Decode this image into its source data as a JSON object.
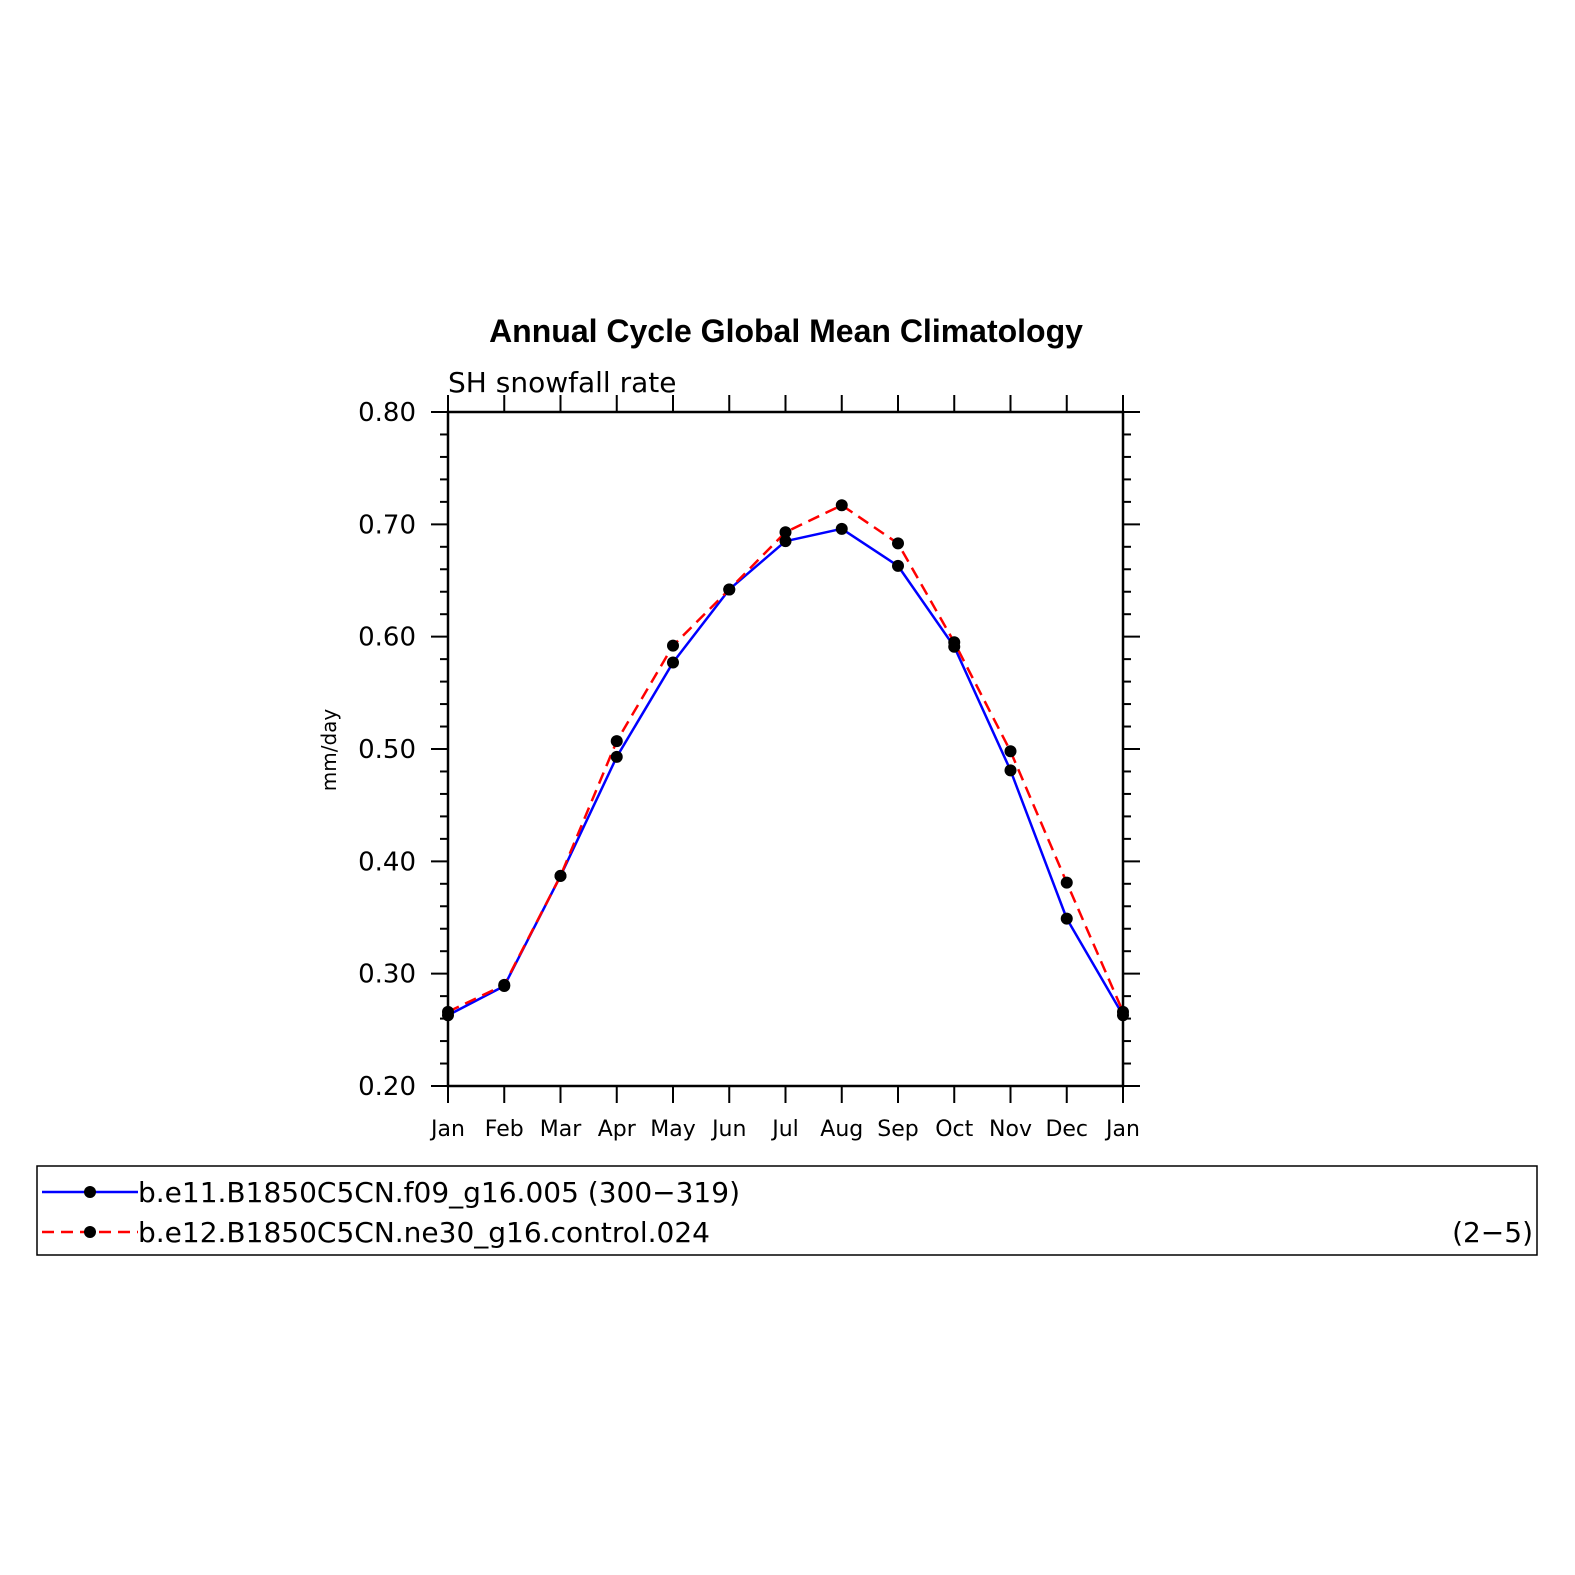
{
  "chart_data": {
    "type": "line",
    "title": "Annual Cycle Global Mean Climatology",
    "subtitle": "SH snowfall rate",
    "ylabel": "mm/day",
    "xlabel": "",
    "categories": [
      "Jan",
      "Feb",
      "Mar",
      "Apr",
      "May",
      "Jun",
      "Jul",
      "Aug",
      "Sep",
      "Oct",
      "Nov",
      "Dec",
      "Jan"
    ],
    "ylim": [
      0.2,
      0.8
    ],
    "yticks": [
      "0.20",
      "0.30",
      "0.40",
      "0.50",
      "0.60",
      "0.70",
      "0.80"
    ],
    "series": [
      {
        "name": "b.e11.B1850C5CN.f09_g16.005 (300−319)",
        "color": "#0000ff",
        "dash": "solid",
        "values": [
          0.263,
          0.289,
          0.387,
          0.493,
          0.577,
          0.642,
          0.685,
          0.696,
          0.663,
          0.591,
          0.481,
          0.349,
          0.263
        ]
      },
      {
        "name": "b.e12.B1850C5CN.ne30_g16.control.024",
        "color": "#ff0000",
        "dash": "dashed",
        "values": [
          0.266,
          0.29,
          0.387,
          0.507,
          0.592,
          0.642,
          0.693,
          0.717,
          0.683,
          0.595,
          0.498,
          0.381,
          0.266
        ]
      }
    ],
    "legend": {
      "placement": "bottom",
      "range_note": "(2−5)"
    }
  }
}
